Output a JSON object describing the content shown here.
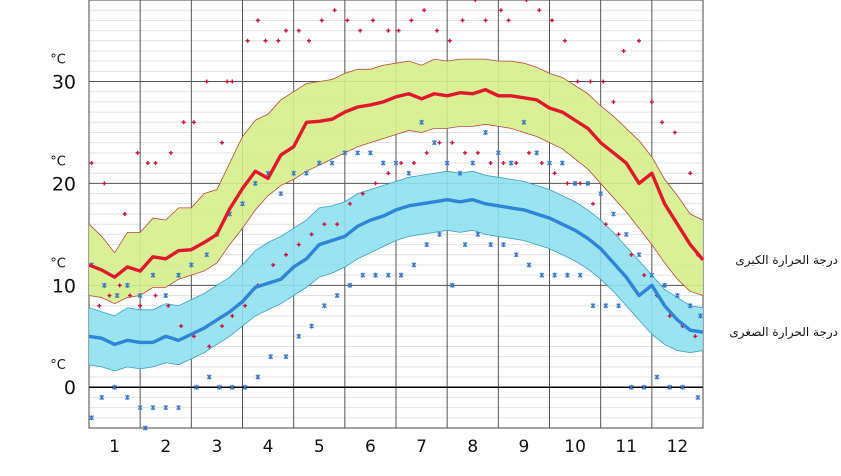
{
  "chart_data": {
    "type": "line",
    "y_unit": "°C",
    "y_ticks": [
      "0",
      "10",
      "20",
      "30"
    ],
    "months": [
      "1",
      "2",
      "3",
      "4",
      "5",
      "6",
      "7",
      "8",
      "9",
      "10",
      "11",
      "12"
    ],
    "ylim": [
      -4,
      38
    ],
    "grid": true,
    "colors": {
      "max_line": "#e0182b",
      "max_band": "#d6ee8c",
      "max_band_edge": "#b84a3a",
      "min_line": "#2e84d6",
      "min_band": "#8fe0ee",
      "min_band_edge": "#3aa0c8",
      "max_marks": "#c8143c",
      "min_marks": "#3a78c8",
      "zero_line": "#000000"
    },
    "series": [
      {
        "name": "درجة الحرارة الكبرى",
        "x": [
          0.5,
          0.75,
          1.0,
          1.25,
          1.5,
          1.75,
          2.0,
          2.25,
          2.5,
          2.75,
          3.0,
          3.25,
          3.5,
          3.75,
          4.0,
          4.25,
          4.5,
          4.75,
          5.0,
          5.25,
          5.5,
          5.75,
          6.0,
          6.25,
          6.5,
          6.75,
          7.0,
          7.25,
          7.5,
          7.75,
          8.0,
          8.25,
          8.5,
          8.75,
          9.0,
          9.25,
          9.5,
          9.75,
          10.0,
          10.25,
          10.5,
          10.75,
          11.0,
          11.25,
          11.5,
          11.75,
          12.0,
          12.25,
          12.5
        ],
        "values": [
          12.0,
          11.5,
          10.8,
          11.8,
          11.4,
          12.8,
          12.6,
          13.4,
          13.5,
          14.2,
          15.0,
          17.5,
          19.5,
          21.2,
          20.5,
          22.8,
          23.6,
          26.0,
          26.1,
          26.3,
          27.0,
          27.5,
          27.7,
          28.0,
          28.5,
          28.8,
          28.3,
          28.8,
          28.6,
          28.9,
          28.8,
          29.2,
          28.6,
          28.6,
          28.4,
          28.2,
          27.4,
          27.0,
          26.2,
          25.4,
          24.0,
          23.0,
          22.0,
          20.0,
          21.0,
          18.0,
          16.0,
          14.0,
          12.5
        ],
        "band_upper": [
          16.0,
          14.8,
          13.2,
          15.2,
          15.2,
          16.6,
          16.4,
          17.6,
          17.6,
          19.0,
          19.4,
          22.0,
          24.6,
          26.2,
          26.8,
          28.2,
          29.0,
          29.8,
          30.0,
          30.2,
          30.8,
          31.2,
          31.2,
          31.6,
          31.8,
          32.0,
          31.6,
          32.2,
          32.0,
          32.2,
          32.2,
          32.2,
          32.0,
          32.0,
          31.8,
          31.4,
          30.8,
          30.4,
          29.6,
          28.8,
          27.6,
          26.6,
          25.4,
          24.2,
          22.6,
          20.4,
          18.8,
          17.0,
          16.4
        ],
        "band_lower": [
          9.0,
          8.8,
          8.2,
          8.8,
          9.0,
          9.8,
          9.8,
          10.6,
          11.0,
          11.4,
          12.2,
          14.0,
          15.6,
          17.4,
          18.8,
          19.8,
          20.4,
          21.2,
          21.8,
          22.4,
          23.0,
          23.6,
          24.0,
          24.4,
          24.8,
          25.2,
          25.0,
          25.4,
          25.4,
          25.6,
          25.6,
          25.8,
          25.6,
          25.4,
          25.0,
          24.6,
          24.0,
          23.4,
          22.4,
          21.4,
          20.0,
          18.6,
          17.2,
          15.6,
          14.0,
          12.2,
          10.6,
          9.4,
          9.0
        ]
      },
      {
        "name": "درجة الحرارة الصغرى",
        "x": [
          0.5,
          0.75,
          1.0,
          1.25,
          1.5,
          1.75,
          2.0,
          2.25,
          2.5,
          2.75,
          3.0,
          3.25,
          3.5,
          3.75,
          4.0,
          4.25,
          4.5,
          4.75,
          5.0,
          5.25,
          5.5,
          5.75,
          6.0,
          6.25,
          6.5,
          6.75,
          7.0,
          7.25,
          7.5,
          7.75,
          8.0,
          8.25,
          8.5,
          8.75,
          9.0,
          9.25,
          9.5,
          9.75,
          10.0,
          10.25,
          10.5,
          10.75,
          11.0,
          11.25,
          11.5,
          11.75,
          12.0,
          12.25,
          12.5
        ],
        "values": [
          5.0,
          4.8,
          4.2,
          4.6,
          4.4,
          4.4,
          5.0,
          4.6,
          5.2,
          5.8,
          6.6,
          7.4,
          8.4,
          9.8,
          10.2,
          10.6,
          11.8,
          12.6,
          14.0,
          14.4,
          14.8,
          15.8,
          16.4,
          16.8,
          17.4,
          17.8,
          18.0,
          18.2,
          18.4,
          18.2,
          18.4,
          18.0,
          17.8,
          17.6,
          17.4,
          17.0,
          16.6,
          16.0,
          15.4,
          14.6,
          13.6,
          12.2,
          10.8,
          9.0,
          10.0,
          8.0,
          6.6,
          5.6,
          5.4
        ],
        "band_upper": [
          7.8,
          7.4,
          7.0,
          7.8,
          7.6,
          7.6,
          8.2,
          8.0,
          8.6,
          9.2,
          10.0,
          10.8,
          12.0,
          13.4,
          14.2,
          14.8,
          15.6,
          16.4,
          17.6,
          17.8,
          18.2,
          19.0,
          19.4,
          19.8,
          20.2,
          20.6,
          20.8,
          21.0,
          21.2,
          21.0,
          21.2,
          20.8,
          20.6,
          20.4,
          20.2,
          19.8,
          19.4,
          18.8,
          18.2,
          17.4,
          16.4,
          15.2,
          13.8,
          12.4,
          11.0,
          9.6,
          8.8,
          8.0,
          7.8
        ],
        "band_lower": [
          2.2,
          2.0,
          1.6,
          2.0,
          1.8,
          2.0,
          2.4,
          2.2,
          2.8,
          3.4,
          4.2,
          5.0,
          6.0,
          7.0,
          7.6,
          8.2,
          9.0,
          9.8,
          10.8,
          11.2,
          11.8,
          12.6,
          13.2,
          13.8,
          14.4,
          14.8,
          15.0,
          15.2,
          15.4,
          15.2,
          15.4,
          15.0,
          14.8,
          14.6,
          14.4,
          14.0,
          13.6,
          13.0,
          12.4,
          11.6,
          10.6,
          9.4,
          8.0,
          6.6,
          5.2,
          4.2,
          3.6,
          3.4,
          3.6
        ]
      }
    ],
    "max_marks": [
      [
        0.55,
        22
      ],
      [
        0.8,
        20
      ],
      [
        1.2,
        17
      ],
      [
        1.45,
        23
      ],
      [
        1.65,
        22
      ],
      [
        1.8,
        22
      ],
      [
        2.1,
        23
      ],
      [
        2.35,
        26
      ],
      [
        2.55,
        26
      ],
      [
        2.8,
        30
      ],
      [
        3.1,
        24
      ],
      [
        3.2,
        30
      ],
      [
        3.3,
        30
      ],
      [
        3.6,
        34
      ],
      [
        3.8,
        36
      ],
      [
        3.95,
        34
      ],
      [
        4.2,
        34
      ],
      [
        4.35,
        35
      ],
      [
        4.6,
        35
      ],
      [
        4.8,
        34
      ],
      [
        5.05,
        36
      ],
      [
        5.3,
        37
      ],
      [
        5.55,
        36
      ],
      [
        5.8,
        35
      ],
      [
        6.05,
        36
      ],
      [
        6.35,
        35
      ],
      [
        6.55,
        35
      ],
      [
        6.8,
        36
      ],
      [
        7.05,
        37
      ],
      [
        7.3,
        35
      ],
      [
        7.55,
        34
      ],
      [
        7.8,
        36
      ],
      [
        8.05,
        38
      ],
      [
        8.25,
        36
      ],
      [
        8.55,
        37
      ],
      [
        8.7,
        36
      ],
      [
        9.05,
        38
      ],
      [
        9.3,
        37
      ],
      [
        9.55,
        36
      ],
      [
        9.8,
        34
      ],
      [
        10.05,
        30
      ],
      [
        10.3,
        30
      ],
      [
        10.55,
        30
      ],
      [
        10.75,
        28
      ],
      [
        10.95,
        33
      ],
      [
        11.25,
        34
      ],
      [
        11.5,
        28
      ],
      [
        11.7,
        26
      ],
      [
        11.95,
        25
      ],
      [
        12.25,
        21
      ],
      [
        12.4,
        13
      ],
      [
        0.7,
        8
      ],
      [
        0.9,
        9
      ],
      [
        1.1,
        10
      ],
      [
        1.3,
        9
      ],
      [
        1.5,
        8
      ],
      [
        1.8,
        9
      ],
      [
        2.05,
        8
      ],
      [
        2.3,
        6
      ],
      [
        2.55,
        5
      ],
      [
        2.85,
        4
      ],
      [
        3.1,
        6
      ],
      [
        3.3,
        7
      ],
      [
        3.55,
        8
      ],
      [
        3.8,
        10
      ],
      [
        4.1,
        12
      ],
      [
        4.35,
        13
      ],
      [
        4.6,
        14
      ],
      [
        4.85,
        15
      ],
      [
        5.1,
        16
      ],
      [
        5.35,
        16
      ],
      [
        5.6,
        18
      ],
      [
        5.85,
        19
      ],
      [
        6.1,
        20
      ],
      [
        6.35,
        21
      ],
      [
        6.6,
        22
      ],
      [
        6.85,
        22
      ],
      [
        7.1,
        23
      ],
      [
        7.35,
        24
      ],
      [
        7.6,
        24
      ],
      [
        7.85,
        23
      ],
      [
        8.1,
        23
      ],
      [
        8.35,
        22
      ],
      [
        8.6,
        22
      ],
      [
        8.85,
        22
      ],
      [
        9.1,
        23
      ],
      [
        9.35,
        22
      ],
      [
        9.6,
        21
      ],
      [
        9.85,
        20
      ],
      [
        10.1,
        20
      ],
      [
        10.35,
        18
      ],
      [
        10.6,
        16
      ],
      [
        10.85,
        15
      ],
      [
        11.1,
        13
      ],
      [
        11.35,
        11
      ],
      [
        11.6,
        9
      ],
      [
        11.85,
        7
      ],
      [
        12.1,
        6
      ],
      [
        12.35,
        5
      ]
    ],
    "min_marks": [
      [
        0.55,
        12
      ],
      [
        0.8,
        10
      ],
      [
        1.05,
        9
      ],
      [
        1.25,
        10
      ],
      [
        1.5,
        9
      ],
      [
        1.75,
        11
      ],
      [
        2.0,
        9
      ],
      [
        2.25,
        11
      ],
      [
        2.5,
        12
      ],
      [
        2.8,
        13
      ],
      [
        3.0,
        15
      ],
      [
        3.25,
        17
      ],
      [
        3.5,
        18
      ],
      [
        3.75,
        20
      ],
      [
        4.0,
        21
      ],
      [
        4.25,
        19
      ],
      [
        4.5,
        21
      ],
      [
        4.75,
        21
      ],
      [
        5.0,
        22
      ],
      [
        5.25,
        22
      ],
      [
        5.5,
        23
      ],
      [
        5.75,
        23
      ],
      [
        6.0,
        23
      ],
      [
        6.25,
        22
      ],
      [
        6.5,
        22
      ],
      [
        6.75,
        21
      ],
      [
        7.0,
        26
      ],
      [
        7.25,
        24
      ],
      [
        7.5,
        22
      ],
      [
        7.75,
        21
      ],
      [
        8.0,
        22
      ],
      [
        8.25,
        25
      ],
      [
        8.5,
        23
      ],
      [
        8.75,
        22
      ],
      [
        9.0,
        26
      ],
      [
        9.25,
        23
      ],
      [
        9.5,
        22
      ],
      [
        9.75,
        22
      ],
      [
        10.0,
        20
      ],
      [
        10.25,
        20
      ],
      [
        10.5,
        19
      ],
      [
        10.75,
        17
      ],
      [
        11.0,
        15
      ],
      [
        11.25,
        13
      ],
      [
        11.5,
        11
      ],
      [
        11.75,
        10
      ],
      [
        12.0,
        9
      ],
      [
        12.25,
        8
      ],
      [
        12.45,
        7
      ],
      [
        0.55,
        -3
      ],
      [
        0.75,
        -1
      ],
      [
        1.0,
        0
      ],
      [
        1.25,
        -1
      ],
      [
        1.5,
        -2
      ],
      [
        1.6,
        -4
      ],
      [
        1.75,
        -2
      ],
      [
        2.0,
        -2
      ],
      [
        2.25,
        -2
      ],
      [
        2.6,
        0
      ],
      [
        2.85,
        1
      ],
      [
        3.05,
        0
      ],
      [
        3.3,
        0
      ],
      [
        3.55,
        0
      ],
      [
        3.8,
        1
      ],
      [
        4.05,
        3
      ],
      [
        4.35,
        3
      ],
      [
        4.6,
        5
      ],
      [
        4.85,
        6
      ],
      [
        5.1,
        8
      ],
      [
        5.35,
        9
      ],
      [
        5.6,
        10
      ],
      [
        5.85,
        11
      ],
      [
        6.1,
        11
      ],
      [
        6.35,
        11
      ],
      [
        6.6,
        11
      ],
      [
        6.85,
        12
      ],
      [
        7.1,
        14
      ],
      [
        7.35,
        15
      ],
      [
        7.6,
        10
      ],
      [
        7.85,
        14
      ],
      [
        8.1,
        15
      ],
      [
        8.35,
        14
      ],
      [
        8.6,
        14
      ],
      [
        8.85,
        13
      ],
      [
        9.1,
        12
      ],
      [
        9.35,
        11
      ],
      [
        9.6,
        11
      ],
      [
        9.85,
        11
      ],
      [
        10.1,
        11
      ],
      [
        10.35,
        8
      ],
      [
        10.6,
        8
      ],
      [
        10.85,
        8
      ],
      [
        11.1,
        0
      ],
      [
        11.35,
        0
      ],
      [
        11.6,
        1
      ],
      [
        11.85,
        0
      ],
      [
        12.1,
        0
      ],
      [
        12.4,
        -1
      ]
    ]
  }
}
